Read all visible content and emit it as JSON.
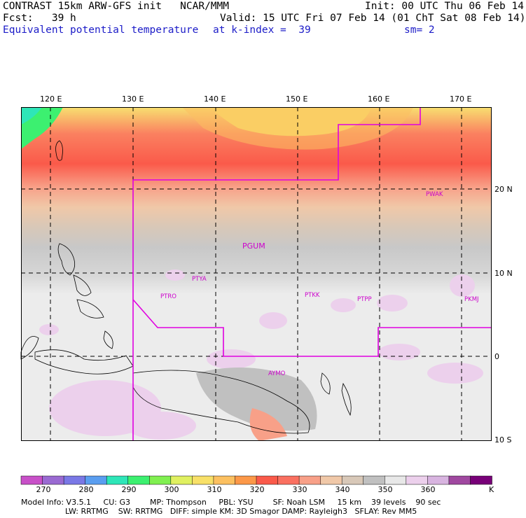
{
  "header": {
    "line1_left": "CONTRAST 15km ARW-GFS init   NCAR/MMM",
    "line1_right": "Init: 00 UTC Thu 06 Feb 14",
    "line2_left": "Fcst:   39 h",
    "line2_right": "Valid: 15 UTC Fri 07 Feb 14 (01 ChT Sat 08 Feb 14)",
    "line3_left": "Equivalent potential temperature",
    "line3_mid": "at k-index =  39",
    "line3_right": "sm= 2"
  },
  "map": {
    "lon_labels": [
      "120 E",
      "130 E",
      "140 E",
      "150 E",
      "160 E",
      "170 E"
    ],
    "lat_labels": [
      "20 N",
      "10 N",
      "0",
      "10 S"
    ],
    "stations": [
      {
        "name": "PWAK"
      },
      {
        "name": "PGUM"
      },
      {
        "name": "PTYA"
      },
      {
        "name": "PTRO"
      },
      {
        "name": "PTKK"
      },
      {
        "name": "PTPP"
      },
      {
        "name": "PKMJ"
      },
      {
        "name": "AYMO"
      }
    ],
    "boundary_color": "#e000e0"
  },
  "colorbar": {
    "unit": "K",
    "labels": [
      "270",
      "280",
      "290",
      "300",
      "310",
      "320",
      "330",
      "340",
      "350",
      "360"
    ],
    "colors": [
      "#c850c8",
      "#9a6ad2",
      "#7a78e6",
      "#5a9ef0",
      "#2ee6b8",
      "#3cf070",
      "#80f050",
      "#e0f060",
      "#f8e068",
      "#fcc060",
      "#fc9848",
      "#fa5a4a",
      "#fa7060",
      "#f8a088",
      "#f0c8a8",
      "#d8c8b8",
      "#c0c0c0",
      "#e8e8e8",
      "#ecd0ec",
      "#d8b4e0",
      "#a048a0",
      "#780078"
    ]
  },
  "footer": {
    "line1": "Model Info: V3.5.1     CU: G3        MP: Thompson     PBL: YSU        SF: Noah LSM     15 km    39 levels    90 sec",
    "line2": "                  LW: RRTMG    SW: RRTMG   DIFF: simple KM: 3D Smagor DAMP: Rayleigh3   SFLAY: Rev MM5"
  }
}
